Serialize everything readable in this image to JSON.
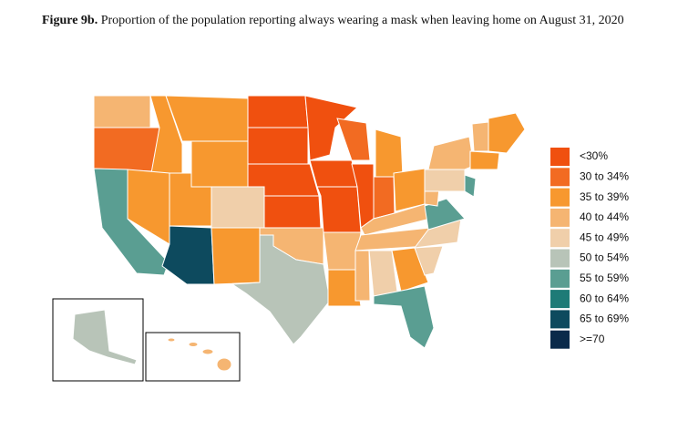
{
  "header": {
    "label": "Figure 9b.",
    "title": "Proportion of the population reporting always wearing a mask when leaving home on August 31, 2020"
  },
  "legend": [
    {
      "label": "<30%",
      "color": "#f0500f"
    },
    {
      "label": "30 to 34%",
      "color": "#f26b22"
    },
    {
      "label": "35 to 39%",
      "color": "#f7982f"
    },
    {
      "label": "40 to 44%",
      "color": "#f5b572"
    },
    {
      "label": "45 to 49%",
      "color": "#f0cfaa"
    },
    {
      "label": "50 to 54%",
      "color": "#b8c4b8"
    },
    {
      "label": "55 to 59%",
      "color": "#5a9e92"
    },
    {
      "label": "60 to 64%",
      "color": "#1e7b77"
    },
    {
      "label": "65 to 69%",
      "color": "#0d4a5e"
    },
    {
      "label": ">=70",
      "color": "#0a2a4a"
    }
  ]
}
